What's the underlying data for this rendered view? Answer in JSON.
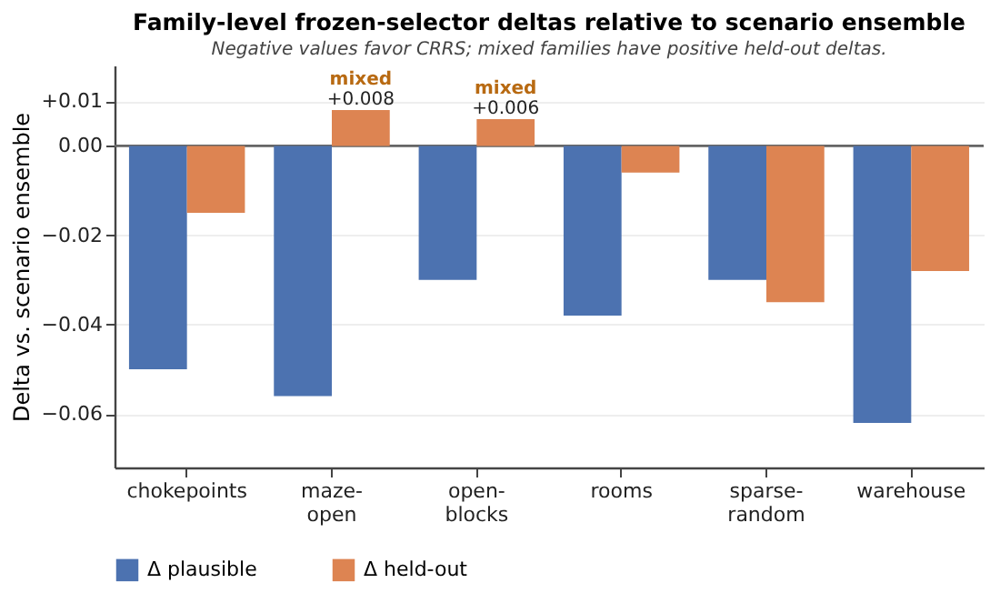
{
  "chart_data": {
    "type": "bar",
    "title": "Family-level frozen-selector deltas relative to scenario ensemble",
    "subtitle": "Negative values favor CRRS; mixed families have positive held-out deltas.",
    "ylabel": "Delta vs. scenario ensemble",
    "categories": [
      "chokepoints",
      "maze-open",
      "open-blocks",
      "rooms",
      "sparse-random",
      "warehouse"
    ],
    "series": [
      {
        "name": "Δ plausible",
        "color": "#4c72b0",
        "values": [
          -0.05,
          -0.056,
          -0.03,
          -0.038,
          -0.03,
          -0.062
        ]
      },
      {
        "name": "Δ held-out",
        "color": "#dd8452",
        "values": [
          -0.015,
          0.008,
          0.006,
          -0.006,
          -0.035,
          -0.028
        ],
        "value_labels": [
          null,
          "+0.008",
          "+0.006",
          null,
          null,
          null
        ]
      }
    ],
    "annotations": [
      {
        "text": "mixed",
        "x": "maze-open",
        "y": 0.008
      },
      {
        "text": "mixed",
        "x": "open-blocks",
        "y": 0.006
      }
    ],
    "ylim": [
      -0.072,
      0.018
    ],
    "yticks": [
      {
        "value": 0.01,
        "label": "+0.01"
      },
      {
        "value": 0,
        "label": "0.00"
      },
      {
        "value": -0.02,
        "label": "−0.02"
      },
      {
        "value": -0.04,
        "label": "−0.04"
      },
      {
        "value": -0.06,
        "label": "−0.06"
      }
    ],
    "ref_lines": [
      {
        "axis": "y",
        "value": 0,
        "color": "#666666"
      }
    ],
    "grid": "y",
    "legend": "bottom"
  }
}
